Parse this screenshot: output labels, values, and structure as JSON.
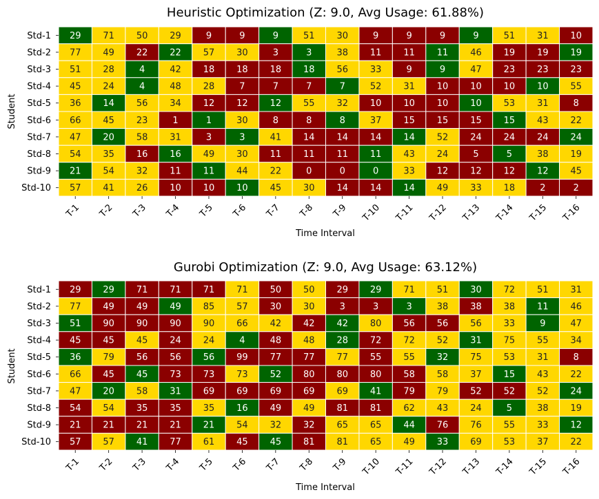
{
  "colors": {
    "green": "#006400",
    "yellow": "#FFD700",
    "red": "#8B0000",
    "grid": "#ffffff",
    "text_on_dark": "#ffffff",
    "text_on_light": "#222222"
  },
  "chart_data": [
    {
      "type": "heatmap",
      "title": "Heuristic Optimization (Z: 9.0, Avg Usage: 61.88%)",
      "xlabel": "Time Interval",
      "ylabel": "Student",
      "x_labels": [
        "T-1",
        "T-2",
        "T-3",
        "T-4",
        "T-5",
        "T-6",
        "T-7",
        "T-8",
        "T-9",
        "T-10",
        "T-11",
        "T-12",
        "T-13",
        "T-14",
        "T-15",
        "T-16"
      ],
      "y_labels": [
        "Std-1",
        "Std-2",
        "Std-3",
        "Std-4",
        "Std-5",
        "Std-6",
        "Std-7",
        "Std-8",
        "Std-9",
        "Std-10"
      ],
      "values": [
        [
          29,
          71,
          50,
          29,
          9,
          9,
          9,
          51,
          30,
          9,
          9,
          9,
          9,
          51,
          31,
          10
        ],
        [
          77,
          49,
          22,
          22,
          57,
          30,
          3,
          3,
          38,
          11,
          11,
          11,
          46,
          19,
          19,
          19
        ],
        [
          51,
          28,
          4,
          42,
          18,
          18,
          18,
          18,
          56,
          33,
          9,
          9,
          47,
          23,
          23,
          23
        ],
        [
          45,
          24,
          4,
          48,
          28,
          7,
          7,
          7,
          7,
          52,
          31,
          10,
          10,
          10,
          10,
          55
        ],
        [
          36,
          14,
          56,
          34,
          12,
          12,
          12,
          55,
          32,
          10,
          10,
          10,
          10,
          53,
          31,
          8
        ],
        [
          66,
          45,
          23,
          1,
          1,
          30,
          8,
          8,
          8,
          37,
          15,
          15,
          15,
          15,
          43,
          22
        ],
        [
          47,
          20,
          58,
          31,
          3,
          3,
          41,
          14,
          14,
          14,
          14,
          52,
          24,
          24,
          24,
          24
        ],
        [
          54,
          35,
          16,
          16,
          49,
          30,
          11,
          11,
          11,
          11,
          43,
          24,
          5,
          5,
          38,
          19
        ],
        [
          21,
          54,
          32,
          11,
          11,
          44,
          22,
          0,
          0,
          0,
          33,
          12,
          12,
          12,
          12,
          45
        ],
        [
          57,
          41,
          26,
          10,
          10,
          10,
          45,
          30,
          14,
          14,
          14,
          49,
          33,
          18,
          2,
          2
        ]
      ],
      "categories": [
        [
          "G",
          "Y",
          "Y",
          "Y",
          "R",
          "R",
          "G",
          "Y",
          "Y",
          "R",
          "R",
          "R",
          "G",
          "Y",
          "Y",
          "R"
        ],
        [
          "Y",
          "Y",
          "R",
          "G",
          "Y",
          "Y",
          "R",
          "G",
          "Y",
          "R",
          "R",
          "G",
          "Y",
          "R",
          "R",
          "G"
        ],
        [
          "Y",
          "Y",
          "G",
          "Y",
          "R",
          "R",
          "R",
          "G",
          "Y",
          "Y",
          "R",
          "G",
          "Y",
          "R",
          "R",
          "R"
        ],
        [
          "Y",
          "Y",
          "G",
          "Y",
          "Y",
          "R",
          "R",
          "R",
          "G",
          "Y",
          "Y",
          "R",
          "R",
          "R",
          "G",
          "Y"
        ],
        [
          "Y",
          "G",
          "Y",
          "Y",
          "R",
          "R",
          "G",
          "Y",
          "Y",
          "R",
          "R",
          "R",
          "G",
          "Y",
          "Y",
          "R"
        ],
        [
          "Y",
          "Y",
          "Y",
          "R",
          "G",
          "Y",
          "R",
          "R",
          "G",
          "Y",
          "R",
          "R",
          "R",
          "G",
          "Y",
          "Y"
        ],
        [
          "Y",
          "G",
          "Y",
          "Y",
          "R",
          "G",
          "Y",
          "R",
          "R",
          "R",
          "G",
          "Y",
          "R",
          "R",
          "R",
          "G"
        ],
        [
          "Y",
          "Y",
          "R",
          "G",
          "Y",
          "Y",
          "R",
          "R",
          "R",
          "G",
          "Y",
          "Y",
          "R",
          "G",
          "Y",
          "Y"
        ],
        [
          "G",
          "Y",
          "Y",
          "R",
          "G",
          "Y",
          "Y",
          "R",
          "R",
          "G",
          "Y",
          "R",
          "R",
          "R",
          "G",
          "Y"
        ],
        [
          "Y",
          "Y",
          "Y",
          "R",
          "R",
          "G",
          "Y",
          "Y",
          "R",
          "R",
          "G",
          "Y",
          "Y",
          "Y",
          "R",
          "R"
        ]
      ]
    },
    {
      "type": "heatmap",
      "title": "Gurobi Optimization (Z: 9.0, Avg Usage: 63.12%)",
      "xlabel": "Time Interval",
      "ylabel": "Student",
      "x_labels": [
        "T-1",
        "T-2",
        "T-3",
        "T-4",
        "T-5",
        "T-6",
        "T-7",
        "T-8",
        "T-9",
        "T-10",
        "T-11",
        "T-12",
        "T-13",
        "T-14",
        "T-15",
        "T-16"
      ],
      "y_labels": [
        "Std-1",
        "Std-2",
        "Std-3",
        "Std-4",
        "Std-5",
        "Std-6",
        "Std-7",
        "Std-8",
        "Std-9",
        "Std-10"
      ],
      "values": [
        [
          29,
          29,
          71,
          71,
          71,
          71,
          50,
          50,
          29,
          29,
          71,
          51,
          30,
          72,
          51,
          31
        ],
        [
          77,
          49,
          49,
          49,
          85,
          57,
          30,
          30,
          3,
          3,
          3,
          38,
          38,
          38,
          11,
          46
        ],
        [
          51,
          90,
          90,
          90,
          90,
          66,
          42,
          42,
          42,
          80,
          56,
          56,
          56,
          33,
          9,
          47
        ],
        [
          45,
          45,
          45,
          24,
          24,
          4,
          48,
          48,
          28,
          72,
          72,
          52,
          31,
          75,
          55,
          34
        ],
        [
          36,
          79,
          56,
          56,
          56,
          99,
          77,
          77,
          77,
          55,
          55,
          32,
          75,
          53,
          31,
          8
        ],
        [
          66,
          45,
          45,
          73,
          73,
          73,
          52,
          80,
          80,
          80,
          58,
          58,
          37,
          15,
          43,
          22
        ],
        [
          47,
          20,
          58,
          31,
          69,
          69,
          69,
          69,
          69,
          41,
          79,
          79,
          52,
          52,
          52,
          24
        ],
        [
          54,
          54,
          35,
          35,
          35,
          16,
          49,
          49,
          81,
          81,
          62,
          43,
          24,
          5,
          38,
          19
        ],
        [
          21,
          21,
          21,
          21,
          21,
          54,
          32,
          32,
          65,
          65,
          44,
          76,
          76,
          55,
          33,
          12
        ],
        [
          57,
          57,
          41,
          77,
          61,
          45,
          45,
          81,
          81,
          65,
          49,
          33,
          69,
          53,
          37,
          22
        ]
      ],
      "categories": [
        [
          "R",
          "G",
          "R",
          "R",
          "R",
          "Y",
          "R",
          "Y",
          "R",
          "G",
          "Y",
          "Y",
          "G",
          "Y",
          "Y",
          "Y"
        ],
        [
          "Y",
          "R",
          "R",
          "G",
          "Y",
          "Y",
          "R",
          "Y",
          "R",
          "R",
          "G",
          "Y",
          "R",
          "Y",
          "G",
          "Y"
        ],
        [
          "G",
          "R",
          "R",
          "R",
          "Y",
          "Y",
          "Y",
          "R",
          "G",
          "Y",
          "R",
          "R",
          "Y",
          "Y",
          "G",
          "Y"
        ],
        [
          "R",
          "R",
          "Y",
          "R",
          "Y",
          "G",
          "R",
          "Y",
          "G",
          "R",
          "Y",
          "Y",
          "G",
          "Y",
          "Y",
          "Y"
        ],
        [
          "G",
          "Y",
          "R",
          "R",
          "G",
          "R",
          "R",
          "R",
          "Y",
          "R",
          "Y",
          "G",
          "Y",
          "Y",
          "Y",
          "R"
        ],
        [
          "Y",
          "R",
          "G",
          "R",
          "R",
          "Y",
          "G",
          "R",
          "R",
          "R",
          "R",
          "Y",
          "Y",
          "G",
          "Y",
          "Y"
        ],
        [
          "Y",
          "G",
          "Y",
          "G",
          "R",
          "R",
          "R",
          "R",
          "Y",
          "G",
          "R",
          "Y",
          "R",
          "R",
          "Y",
          "G"
        ],
        [
          "R",
          "Y",
          "R",
          "R",
          "Y",
          "G",
          "R",
          "Y",
          "R",
          "R",
          "Y",
          "Y",
          "Y",
          "G",
          "Y",
          "Y"
        ],
        [
          "R",
          "R",
          "R",
          "R",
          "G",
          "Y",
          "Y",
          "R",
          "Y",
          "Y",
          "G",
          "R",
          "Y",
          "Y",
          "Y",
          "G"
        ],
        [
          "R",
          "Y",
          "G",
          "R",
          "Y",
          "R",
          "G",
          "R",
          "Y",
          "Y",
          "Y",
          "G",
          "Y",
          "Y",
          "Y",
          "Y"
        ]
      ]
    }
  ]
}
